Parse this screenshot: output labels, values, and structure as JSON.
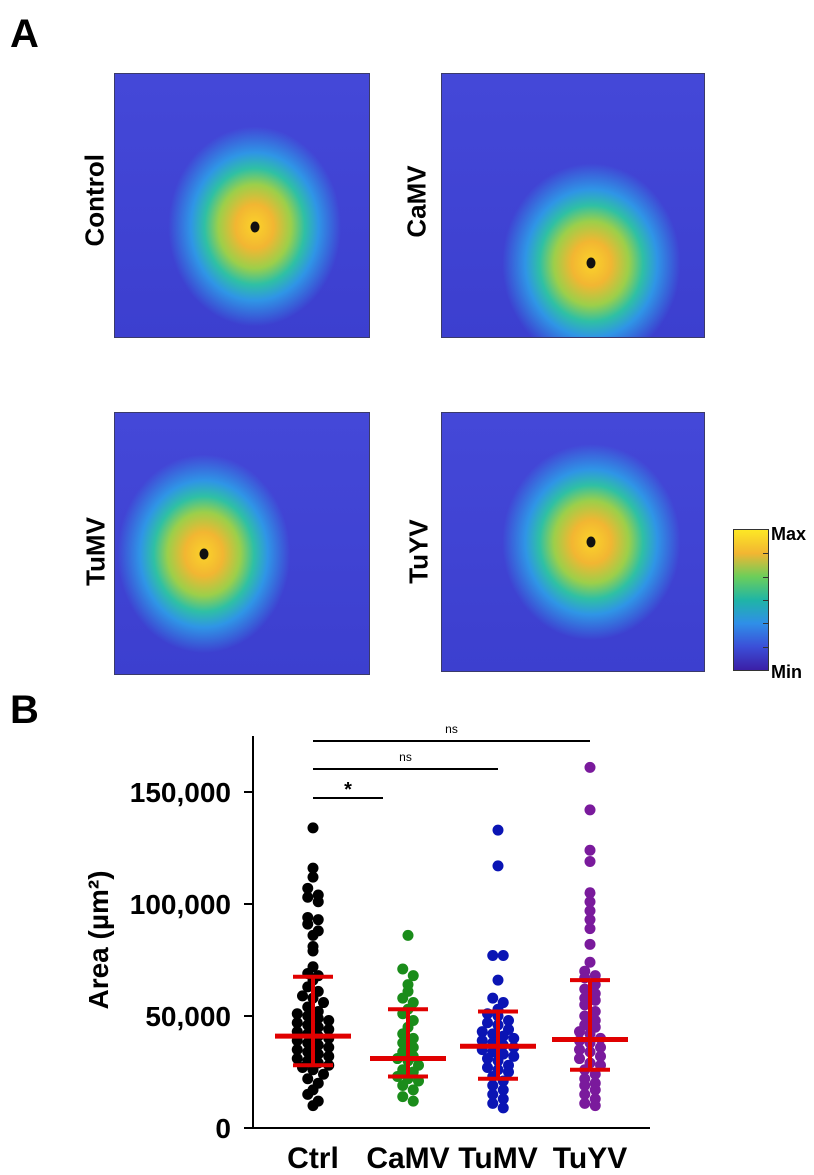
{
  "panel_a": {
    "letter": "A",
    "heatmaps": [
      {
        "label": "Control",
        "center": [
          0.55,
          0.58
        ]
      },
      {
        "label": "CaMV",
        "center": [
          0.57,
          0.72
        ]
      },
      {
        "label": "TuMV",
        "center": [
          0.35,
          0.54
        ]
      },
      {
        "label": "TuYV",
        "center": [
          0.57,
          0.5
        ]
      }
    ],
    "colorbar": {
      "max_label": "Max",
      "min_label": "Min",
      "colors": [
        "#fde725",
        "#f2b632",
        "#6cce5a",
        "#1fb5a6",
        "#2f8fe8",
        "#3b4fd8",
        "#3b1fa6"
      ]
    }
  },
  "panel_b": {
    "letter": "B"
  },
  "chart_data": {
    "type": "scatter",
    "ylabel": "Area (µm²)",
    "ylim": [
      0,
      175000
    ],
    "yticks": [
      0,
      50000,
      100000,
      150000
    ],
    "yticklabels": [
      "0",
      "50,000",
      "100,000",
      "150,000"
    ],
    "categories": [
      "Ctrl",
      "CaMV",
      "TuMV",
      "TuYV"
    ],
    "series": [
      {
        "category": "Ctrl",
        "color": "#000000",
        "median": 41000,
        "q1": 28000,
        "q3": 67500,
        "values": [
          134000,
          116000,
          112000,
          107000,
          104000,
          103000,
          101000,
          94000,
          93000,
          91000,
          88000,
          86000,
          81000,
          79000,
          72000,
          69000,
          68000,
          66000,
          63000,
          61000,
          59000,
          58000,
          56000,
          54000,
          52000,
          51000,
          50000,
          49000,
          48000,
          47000,
          46000,
          45000,
          44000,
          43000,
          42000,
          41000,
          40000,
          39000,
          38000,
          37000,
          36000,
          35000,
          34000,
          33000,
          32000,
          31000,
          30000,
          29000,
          28000,
          27000,
          26000,
          24000,
          22000,
          20000,
          17000,
          15000,
          12000,
          10000
        ]
      },
      {
        "category": "CaMV",
        "color": "#1a8c1a",
        "median": 31000,
        "q1": 23000,
        "q3": 53000,
        "values": [
          86000,
          71000,
          68000,
          64000,
          61000,
          58000,
          56000,
          53000,
          51000,
          48000,
          45000,
          42000,
          40000,
          38000,
          36000,
          34000,
          32000,
          31000,
          30000,
          28000,
          26000,
          25000,
          23000,
          22000,
          21000,
          19000,
          17000,
          14000,
          12000
        ]
      },
      {
        "category": "TuMV",
        "color": "#0a14b4",
        "median": 36500,
        "q1": 22000,
        "q3": 52000,
        "values": [
          133000,
          117000,
          77000,
          77000,
          66000,
          58000,
          56000,
          53000,
          51000,
          50000,
          48000,
          47000,
          46000,
          44000,
          43000,
          42000,
          41000,
          40000,
          39000,
          38000,
          37000,
          36000,
          35000,
          34000,
          33000,
          32000,
          31000,
          30000,
          28000,
          27000,
          26000,
          25000,
          23000,
          21000,
          19000,
          17000,
          15000,
          13000,
          11000,
          9000
        ]
      },
      {
        "category": "TuYV",
        "color": "#7a1a9c",
        "median": 39500,
        "q1": 26000,
        "q3": 66000,
        "values": [
          161000,
          142000,
          124000,
          119000,
          105000,
          101000,
          97000,
          93000,
          89000,
          82000,
          74000,
          70000,
          68000,
          67000,
          64000,
          62000,
          60000,
          58000,
          57000,
          55000,
          52000,
          50000,
          48000,
          46000,
          45000,
          43000,
          42000,
          40000,
          39000,
          38000,
          36000,
          35000,
          34000,
          32000,
          31000,
          29000,
          28000,
          26000,
          24000,
          22000,
          20000,
          19000,
          17000,
          15000,
          13000,
          11000,
          10000
        ]
      }
    ],
    "comparisons": [
      {
        "from": "Ctrl",
        "to": "CaMV",
        "label": "*"
      },
      {
        "from": "Ctrl",
        "to": "TuMV",
        "label": "ns"
      },
      {
        "from": "Ctrl",
        "to": "TuYV",
        "label": "ns"
      }
    ],
    "summary_color": "#e00000"
  }
}
